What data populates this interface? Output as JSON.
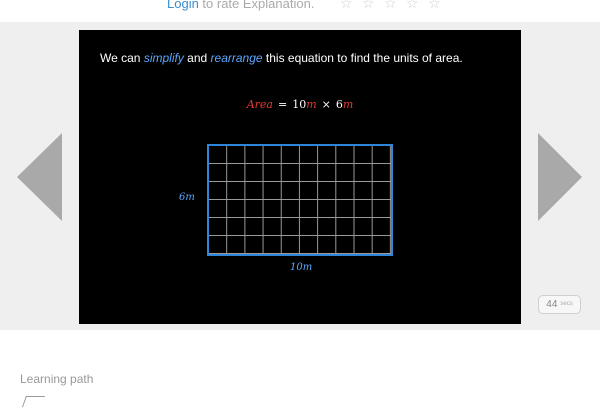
{
  "rating": {
    "login_label": "Login",
    "rest_text": " to rate Explanation.",
    "stars": [
      "☆",
      "☆",
      "☆",
      "☆",
      "☆"
    ]
  },
  "slide": {
    "caption": {
      "part1": "We can ",
      "word1": "simplify",
      "part2": " and ",
      "word2": "rearrange",
      "part3": " this equation to find the units of area."
    },
    "equation": {
      "lhs": "Area",
      "equals": "=",
      "n1": "10",
      "u1": "m",
      "times": "×",
      "n2": "6",
      "u2": "m"
    },
    "grid": {
      "columns": 10,
      "rows": 6
    },
    "side_label": "6m",
    "bottom_label": "10m",
    "colors": {
      "accent": "#5ba8ff",
      "highlight": "#e03a2e",
      "grid_border": "#2f86d8"
    }
  },
  "counter": {
    "value": "44",
    "unit": "secs"
  },
  "navigation": {
    "prev_icon": "triangle-left-icon",
    "next_icon": "triangle-right-icon"
  },
  "learning_path": {
    "label": "Learning path",
    "icon": "path-icon"
  }
}
